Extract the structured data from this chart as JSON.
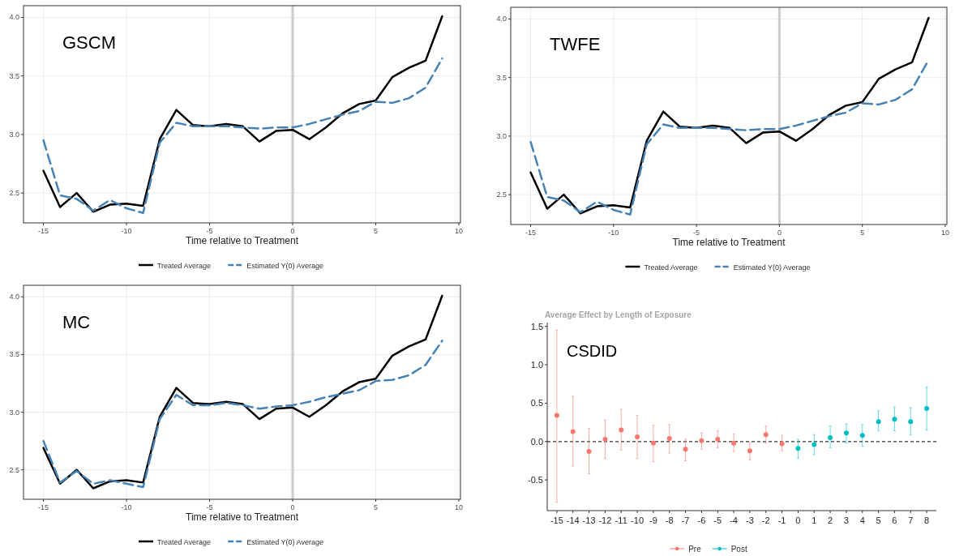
{
  "chart_data": [
    {
      "type": "line",
      "x": [
        -15,
        -14,
        -13,
        -12,
        -11,
        -10,
        -9,
        -8,
        -7,
        -6,
        -5,
        -4,
        -3,
        -2,
        -1,
        0,
        1,
        2,
        3,
        4,
        5,
        6,
        7,
        8,
        9
      ],
      "xlabel": "Time relative to Treatment",
      "annotations": [
        "GSCM"
      ],
      "xlim": [
        -16.2,
        10.1
      ],
      "xticks": [
        -15,
        -10,
        -5,
        0,
        5,
        10
      ],
      "ylim": [
        2.245,
        4.1
      ],
      "yticks": [
        {
          "value": 2.5,
          "label": "2.5"
        },
        {
          "value": 3,
          "label": "3.0"
        },
        {
          "value": 3.5,
          "label": "3.5"
        },
        {
          "value": 4,
          "label": "4.0"
        }
      ],
      "grid": true,
      "legend": "bottom",
      "ref_lines": [
        {
          "axis": "x",
          "value": 0,
          "color": "#cccccc"
        }
      ],
      "series": [
        {
          "name": "Treated Average",
          "color": "#000000",
          "line_style": "solid",
          "values": [
            2.69,
            2.38,
            2.5,
            2.34,
            2.4,
            2.41,
            2.39,
            2.96,
            3.21,
            3.08,
            3.07,
            3.09,
            3.07,
            2.94,
            3.03,
            3.04,
            2.96,
            3.06,
            3.18,
            3.26,
            3.29,
            3.49,
            3.57,
            3.63,
            4.01
          ]
        },
        {
          "name": "Estimated Y(0) Average",
          "color": "#4682b4",
          "line_style": "dashed",
          "values": [
            2.95,
            2.48,
            2.45,
            2.35,
            2.44,
            2.37,
            2.33,
            2.93,
            3.1,
            3.07,
            3.07,
            3.07,
            3.06,
            3.05,
            3.06,
            3.06,
            3.09,
            3.13,
            3.17,
            3.2,
            3.28,
            3.27,
            3.31,
            3.4,
            3.65
          ]
        }
      ]
    },
    {
      "type": "line",
      "x": [
        -15,
        -14,
        -13,
        -12,
        -11,
        -10,
        -9,
        -8,
        -7,
        -6,
        -5,
        -4,
        -3,
        -2,
        -1,
        0,
        1,
        2,
        3,
        4,
        5,
        6,
        7,
        8,
        9
      ],
      "xlabel": "Time relative to Treatment",
      "annotations": [
        "TWFE"
      ],
      "xlim": [
        -16.2,
        10.1
      ],
      "xticks": [
        -15,
        -10,
        -5,
        0,
        5,
        10
      ],
      "ylim": [
        2.245,
        4.1
      ],
      "yticks": [
        {
          "value": 2.5,
          "label": "2.5"
        },
        {
          "value": 3,
          "label": "3.0"
        },
        {
          "value": 3.5,
          "label": "3.5"
        },
        {
          "value": 4,
          "label": "4.0"
        }
      ],
      "grid": true,
      "legend": "bottom",
      "ref_lines": [
        {
          "axis": "x",
          "value": 0,
          "color": "#cccccc"
        }
      ],
      "series": [
        {
          "name": "Treated Average",
          "color": "#000000",
          "line_style": "solid",
          "values": [
            2.69,
            2.38,
            2.5,
            2.34,
            2.4,
            2.41,
            2.39,
            2.96,
            3.21,
            3.08,
            3.07,
            3.09,
            3.07,
            2.94,
            3.03,
            3.04,
            2.96,
            3.06,
            3.18,
            3.26,
            3.29,
            3.49,
            3.57,
            3.63,
            4.01
          ]
        },
        {
          "name": "Estimated Y(0) Average",
          "color": "#4682b4",
          "line_style": "dashed",
          "values": [
            2.95,
            2.48,
            2.45,
            2.35,
            2.44,
            2.37,
            2.33,
            2.93,
            3.1,
            3.07,
            3.07,
            3.07,
            3.06,
            3.05,
            3.06,
            3.06,
            3.09,
            3.13,
            3.17,
            3.2,
            3.28,
            3.27,
            3.31,
            3.4,
            3.65
          ]
        }
      ]
    },
    {
      "type": "line",
      "x": [
        -15,
        -14,
        -13,
        -12,
        -11,
        -10,
        -9,
        -8,
        -7,
        -6,
        -5,
        -4,
        -3,
        -2,
        -1,
        0,
        1,
        2,
        3,
        4,
        5,
        6,
        7,
        8,
        9
      ],
      "xlabel": "Time relative to Treatment",
      "annotations": [
        "MC"
      ],
      "xlim": [
        -16.2,
        10.1
      ],
      "xticks": [
        -15,
        -10,
        -5,
        0,
        5,
        10
      ],
      "ylim": [
        2.245,
        4.1
      ],
      "yticks": [
        {
          "value": 2.5,
          "label": "2.5"
        },
        {
          "value": 3,
          "label": "3.0"
        },
        {
          "value": 3.5,
          "label": "3.5"
        },
        {
          "value": 4,
          "label": "4.0"
        }
      ],
      "grid": true,
      "legend": "bottom",
      "ref_lines": [
        {
          "axis": "x",
          "value": 0,
          "color": "#cccccc"
        }
      ],
      "series": [
        {
          "name": "Treated Average",
          "color": "#000000",
          "line_style": "solid",
          "values": [
            2.69,
            2.38,
            2.5,
            2.34,
            2.4,
            2.41,
            2.39,
            2.96,
            3.21,
            3.08,
            3.07,
            3.09,
            3.07,
            2.94,
            3.03,
            3.04,
            2.96,
            3.06,
            3.18,
            3.26,
            3.29,
            3.49,
            3.57,
            3.63,
            4.01
          ]
        },
        {
          "name": "Estimated Y(0) Average",
          "color": "#4682b4",
          "line_style": "dashed",
          "values": [
            2.75,
            2.39,
            2.49,
            2.38,
            2.41,
            2.38,
            2.35,
            2.94,
            3.15,
            3.06,
            3.06,
            3.08,
            3.06,
            3.03,
            3.05,
            3.06,
            3.09,
            3.13,
            3.16,
            3.19,
            3.27,
            3.28,
            3.32,
            3.41,
            3.62
          ]
        }
      ]
    },
    {
      "type": "scatter",
      "title": "Average Effect by Length of Exposure",
      "annotations": [
        "CSDID"
      ],
      "categories": [
        "-15",
        "-14",
        "-13",
        "-12",
        "-11",
        "-10",
        "-9",
        "-8",
        "-7",
        "-6",
        "-5",
        "-4",
        "-3",
        "-2",
        "-1",
        "0",
        "1",
        "2",
        "3",
        "4",
        "5",
        "6",
        "7",
        "8"
      ],
      "ylim": [
        -0.9,
        1.55
      ],
      "yticks": [
        {
          "value": -0.5,
          "label": "-0.5"
        },
        {
          "value": 0,
          "label": "0.0"
        },
        {
          "value": 0.5,
          "label": "0.5"
        },
        {
          "value": 1,
          "label": "1.0"
        },
        {
          "value": 1.5,
          "label": "1.5"
        }
      ],
      "marker": "circle",
      "legend": "bottom",
      "ref_lines": [
        {
          "axis": "y",
          "value": 0,
          "color": "#333333",
          "line_style": "dashed"
        }
      ],
      "series": [
        {
          "name": "Pre",
          "color": "#f8766d",
          "x": [
            "-15",
            "-14",
            "-13",
            "-12",
            "-11",
            "-10",
            "-9",
            "-8",
            "-7",
            "-6",
            "-5",
            "-4",
            "-3",
            "-2",
            "-1"
          ],
          "values": [
            0.34,
            0.13,
            -0.13,
            0.03,
            0.15,
            0.06,
            -0.02,
            0.04,
            -0.1,
            0.01,
            0.03,
            -0.02,
            -0.12,
            0.09,
            -0.03
          ],
          "errors": [
            [
              -0.79,
              1.45
            ],
            [
              -0.32,
              0.59
            ],
            [
              -0.42,
              0.17
            ],
            [
              -0.22,
              0.28
            ],
            [
              -0.11,
              0.42
            ],
            [
              -0.22,
              0.34
            ],
            [
              -0.26,
              0.21
            ],
            [
              -0.15,
              0.22
            ],
            [
              -0.25,
              0.03
            ],
            [
              -0.1,
              0.11
            ],
            [
              -0.08,
              0.14
            ],
            [
              -0.13,
              0.1
            ],
            [
              -0.24,
              -0.01
            ],
            [
              -0.02,
              0.2
            ],
            [
              -0.12,
              0.08
            ]
          ]
        },
        {
          "name": "Post",
          "color": "#00bfc4",
          "x": [
            "0",
            "1",
            "2",
            "3",
            "4",
            "5",
            "6",
            "7",
            "8"
          ],
          "values": [
            -0.09,
            -0.04,
            0.05,
            0.11,
            0.08,
            0.26,
            0.29,
            0.26,
            0.43
          ],
          "errors": [
            [
              -0.22,
              0.03
            ],
            [
              -0.17,
              0.09
            ],
            [
              -0.08,
              0.2
            ],
            [
              -0.02,
              0.23
            ],
            [
              -0.06,
              0.22
            ],
            [
              0.14,
              0.4
            ],
            [
              0.14,
              0.45
            ],
            [
              0.09,
              0.44
            ],
            [
              0.15,
              0.71
            ]
          ]
        }
      ]
    }
  ]
}
